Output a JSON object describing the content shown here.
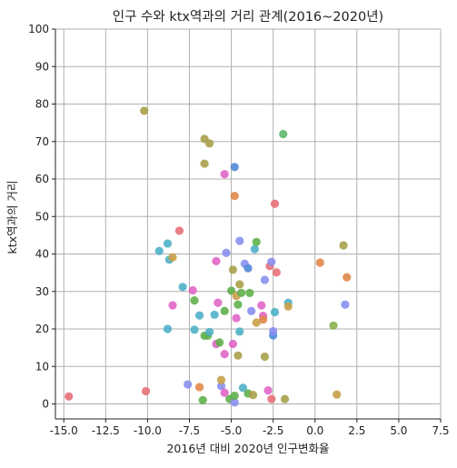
{
  "chart_data": {
    "type": "scatter",
    "title": "인구 수와 ktx역과의 거리 관계(2016~2020년)",
    "xlabel": "2016년 대비 2020년 인구변화율",
    "ylabel": "ktx역과의 거리",
    "xlim": [
      -15.5,
      7.5
    ],
    "ylim": [
      -4,
      100
    ],
    "x_ticks": [
      -15.0,
      -12.5,
      -10.0,
      -7.5,
      -5.0,
      -2.5,
      0.0,
      2.5,
      5.0,
      7.5
    ],
    "x_tick_labels": [
      "-15.0",
      "-12.5",
      "-10.0",
      "-7.5",
      "-5.0",
      "-2.5",
      "0.0",
      "2.5",
      "5.0",
      "7.5"
    ],
    "y_ticks": [
      0,
      10,
      20,
      30,
      40,
      50,
      60,
      70,
      80,
      90,
      100
    ],
    "y_tick_labels": [
      "0",
      "10",
      "20",
      "30",
      "40",
      "50",
      "60",
      "70",
      "80",
      "90",
      "100"
    ],
    "grid": true,
    "legend": "none",
    "points": [
      {
        "x": -14.7,
        "y": 2.0,
        "color": "#e8707a"
      },
      {
        "x": -10.2,
        "y": 78.2,
        "color": "#a8a04a"
      },
      {
        "x": -10.1,
        "y": 3.4,
        "color": "#e8707a"
      },
      {
        "x": -9.3,
        "y": 40.8,
        "color": "#4fb0c6"
      },
      {
        "x": -8.8,
        "y": 42.8,
        "color": "#4fb0c6"
      },
      {
        "x": -8.7,
        "y": 38.5,
        "color": "#4fb0c6"
      },
      {
        "x": -8.5,
        "y": 39.1,
        "color": "#c9a04a"
      },
      {
        "x": -8.1,
        "y": 46.2,
        "color": "#e8707a"
      },
      {
        "x": -8.8,
        "y": 20.0,
        "color": "#4fb0c6"
      },
      {
        "x": -8.5,
        "y": 26.3,
        "color": "#e066c8"
      },
      {
        "x": -7.9,
        "y": 31.2,
        "color": "#4fb0c6"
      },
      {
        "x": -7.6,
        "y": 5.2,
        "color": "#8a8ff0"
      },
      {
        "x": -7.3,
        "y": 30.3,
        "color": "#e066c8"
      },
      {
        "x": -7.2,
        "y": 27.6,
        "color": "#5fb04a"
      },
      {
        "x": -7.2,
        "y": 19.8,
        "color": "#4fb0c6"
      },
      {
        "x": -6.9,
        "y": 23.6,
        "color": "#4fb0c6"
      },
      {
        "x": -6.9,
        "y": 4.5,
        "color": "#e0884a"
      },
      {
        "x": -6.7,
        "y": 1.0,
        "color": "#5fb04a"
      },
      {
        "x": -6.6,
        "y": 18.2,
        "color": "#5fb04a"
      },
      {
        "x": -6.4,
        "y": 18.2,
        "color": "#5fb04a"
      },
      {
        "x": -6.3,
        "y": 19.2,
        "color": "#4fb0c6"
      },
      {
        "x": -6.6,
        "y": 70.7,
        "color": "#a8a04a"
      },
      {
        "x": -6.3,
        "y": 69.5,
        "color": "#a8a04a"
      },
      {
        "x": -6.6,
        "y": 64.1,
        "color": "#a8a04a"
      },
      {
        "x": -6.0,
        "y": 23.8,
        "color": "#4fb0c6"
      },
      {
        "x": -5.9,
        "y": 38.1,
        "color": "#e066c8"
      },
      {
        "x": -5.8,
        "y": 27.0,
        "color": "#e066c8"
      },
      {
        "x": -5.9,
        "y": 16.0,
        "color": "#e066c8"
      },
      {
        "x": -5.7,
        "y": 16.4,
        "color": "#5fb04a"
      },
      {
        "x": -5.6,
        "y": 4.8,
        "color": "#8a8ff0"
      },
      {
        "x": -5.6,
        "y": 6.4,
        "color": "#c9a04a"
      },
      {
        "x": -5.4,
        "y": 3.0,
        "color": "#e066c8"
      },
      {
        "x": -5.4,
        "y": 13.3,
        "color": "#e066c8"
      },
      {
        "x": -5.4,
        "y": 24.8,
        "color": "#5fb04a"
      },
      {
        "x": -5.3,
        "y": 40.3,
        "color": "#8a8ff0"
      },
      {
        "x": -5.4,
        "y": 61.3,
        "color": "#e066c8"
      },
      {
        "x": -5.1,
        "y": 1.3,
        "color": "#5fb04a"
      },
      {
        "x": -5.0,
        "y": 30.2,
        "color": "#5fb04a"
      },
      {
        "x": -4.9,
        "y": 35.8,
        "color": "#a8a04a"
      },
      {
        "x": -4.9,
        "y": 16.0,
        "color": "#e066c8"
      },
      {
        "x": -4.8,
        "y": 0.4,
        "color": "#8a8ff0"
      },
      {
        "x": -4.8,
        "y": 2.2,
        "color": "#5fb04a"
      },
      {
        "x": -4.8,
        "y": 55.5,
        "color": "#e0884a"
      },
      {
        "x": -4.8,
        "y": 63.2,
        "color": "#4f8ad6"
      },
      {
        "x": -4.7,
        "y": 28.8,
        "color": "#c9a04a"
      },
      {
        "x": -4.7,
        "y": 22.9,
        "color": "#e066c8"
      },
      {
        "x": -4.6,
        "y": 12.9,
        "color": "#a8a04a"
      },
      {
        "x": -4.6,
        "y": 26.5,
        "color": "#5fb04a"
      },
      {
        "x": -4.5,
        "y": 43.5,
        "color": "#8a8ff0"
      },
      {
        "x": -4.5,
        "y": 31.9,
        "color": "#a8a04a"
      },
      {
        "x": -4.5,
        "y": 19.3,
        "color": "#4fb0c6"
      },
      {
        "x": -4.4,
        "y": 29.6,
        "color": "#5fb04a"
      },
      {
        "x": -4.3,
        "y": 4.3,
        "color": "#4fb0c6"
      },
      {
        "x": -4.2,
        "y": 37.4,
        "color": "#8a8ff0"
      },
      {
        "x": -4.0,
        "y": 36.2,
        "color": "#4f8ad6"
      },
      {
        "x": -4.0,
        "y": 2.8,
        "color": "#5fb04a"
      },
      {
        "x": -3.9,
        "y": 29.6,
        "color": "#5fb04a"
      },
      {
        "x": -3.8,
        "y": 24.8,
        "color": "#8a8ff0"
      },
      {
        "x": -3.7,
        "y": 2.4,
        "color": "#a8a04a"
      },
      {
        "x": -3.6,
        "y": 41.3,
        "color": "#4fb0c6"
      },
      {
        "x": -3.5,
        "y": 43.2,
        "color": "#5fb04a"
      },
      {
        "x": -3.5,
        "y": 21.7,
        "color": "#c9a04a"
      },
      {
        "x": -3.2,
        "y": 26.3,
        "color": "#e066c8"
      },
      {
        "x": -3.1,
        "y": 23.5,
        "color": "#e066c8"
      },
      {
        "x": -3.1,
        "y": 22.5,
        "color": "#e0884a"
      },
      {
        "x": -3.0,
        "y": 33.1,
        "color": "#8a8ff0"
      },
      {
        "x": -3.0,
        "y": 12.6,
        "color": "#a8a04a"
      },
      {
        "x": -2.8,
        "y": 3.6,
        "color": "#e066c8"
      },
      {
        "x": -2.7,
        "y": 36.8,
        "color": "#e8707a"
      },
      {
        "x": -2.6,
        "y": 37.9,
        "color": "#8a8ff0"
      },
      {
        "x": -2.6,
        "y": 1.3,
        "color": "#e8707a"
      },
      {
        "x": -2.5,
        "y": 18.3,
        "color": "#4f8ad6"
      },
      {
        "x": -2.5,
        "y": 19.4,
        "color": "#8a8ff0"
      },
      {
        "x": -2.4,
        "y": 53.4,
        "color": "#e8707a"
      },
      {
        "x": -2.4,
        "y": 24.5,
        "color": "#4fb0c6"
      },
      {
        "x": -2.3,
        "y": 35.1,
        "color": "#e8707a"
      },
      {
        "x": -1.9,
        "y": 72.0,
        "color": "#5fba6a"
      },
      {
        "x": -1.8,
        "y": 1.3,
        "color": "#a8a04a"
      },
      {
        "x": -1.6,
        "y": 27.0,
        "color": "#4fb0c6"
      },
      {
        "x": -1.6,
        "y": 26.0,
        "color": "#c9a04a"
      },
      {
        "x": 0.3,
        "y": 37.7,
        "color": "#e0884a"
      },
      {
        "x": 1.1,
        "y": 20.9,
        "color": "#8ab04a"
      },
      {
        "x": 1.3,
        "y": 2.5,
        "color": "#c9a04a"
      },
      {
        "x": 1.7,
        "y": 42.3,
        "color": "#a8a04a"
      },
      {
        "x": 1.8,
        "y": 26.5,
        "color": "#8a8ff0"
      },
      {
        "x": 1.9,
        "y": 33.8,
        "color": "#e0884a"
      }
    ]
  }
}
